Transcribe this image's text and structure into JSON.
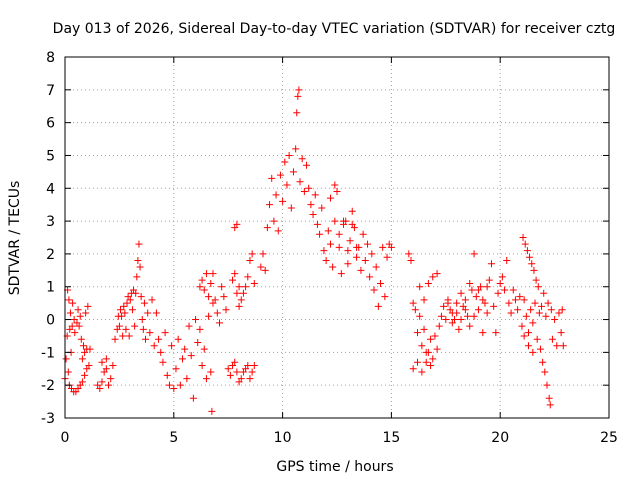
{
  "chart_data": {
    "type": "scatter",
    "title": "Day 013 of 2026, Sidereal Day-to-day VTEC variation (SDTVAR) for receiver cztg",
    "xlabel": "GPS time / hours",
    "ylabel": "SDTVAR / TECUs",
    "xlim": [
      0,
      25
    ],
    "ylim": [
      -3,
      8
    ],
    "xticks": [
      "0",
      "5",
      "10",
      "15",
      "20",
      "25"
    ],
    "yticks": [
      "-3",
      "-2",
      "-1",
      "0",
      "1",
      "2",
      "3",
      "4",
      "5",
      "6",
      "7",
      "8"
    ],
    "grid": true,
    "marker": "plus",
    "color": "#ff0000",
    "series": [
      {
        "name": "SDTVAR",
        "points": [
          [
            0.0,
            -1.8
          ],
          [
            0.05,
            -1.2
          ],
          [
            0.1,
            -0.5
          ],
          [
            0.12,
            0.9
          ],
          [
            0.15,
            -1.6
          ],
          [
            0.18,
            0.6
          ],
          [
            0.2,
            -2.0
          ],
          [
            0.22,
            -0.3
          ],
          [
            0.25,
            0.2
          ],
          [
            0.28,
            -1.0
          ],
          [
            0.3,
            -2.1
          ],
          [
            0.33,
            -0.2
          ],
          [
            0.35,
            0.5
          ],
          [
            0.4,
            -2.2
          ],
          [
            0.42,
            0.0
          ],
          [
            0.45,
            -0.4
          ],
          [
            0.5,
            -2.2
          ],
          [
            0.55,
            -0.1
          ],
          [
            0.6,
            -2.1
          ],
          [
            0.65,
            -0.2
          ],
          [
            0.7,
            -2.0
          ],
          [
            0.75,
            -0.6
          ],
          [
            0.8,
            -1.9
          ],
          [
            0.85,
            -0.8
          ],
          [
            0.9,
            -1.7
          ],
          [
            0.95,
            0.2
          ],
          [
            1.0,
            -1.5
          ],
          [
            1.05,
            0.4
          ],
          [
            1.1,
            -1.4
          ],
          [
            1.15,
            -0.9
          ],
          [
            0.6,
            0.3
          ],
          [
            0.7,
            0.1
          ],
          [
            0.8,
            -1.2
          ],
          [
            0.9,
            -1.0
          ],
          [
            1.0,
            -0.9
          ],
          [
            1.5,
            -2.0
          ],
          [
            1.6,
            -2.1
          ],
          [
            1.7,
            -1.9
          ],
          [
            1.8,
            -1.6
          ],
          [
            1.9,
            -1.5
          ],
          [
            2.0,
            -2.0
          ],
          [
            2.1,
            -1.8
          ],
          [
            2.2,
            -1.4
          ],
          [
            1.7,
            -1.3
          ],
          [
            1.9,
            -1.2
          ],
          [
            2.3,
            -0.6
          ],
          [
            2.4,
            -0.3
          ],
          [
            2.45,
            0.1
          ],
          [
            2.5,
            -0.2
          ],
          [
            2.55,
            0.3
          ],
          [
            2.6,
            0.1
          ],
          [
            2.65,
            -0.5
          ],
          [
            2.7,
            0.4
          ],
          [
            2.75,
            0.2
          ],
          [
            2.8,
            -0.3
          ],
          [
            2.85,
            0.5
          ],
          [
            2.9,
            0.7
          ],
          [
            2.95,
            -0.5
          ],
          [
            3.0,
            0.6
          ],
          [
            3.05,
            0.8
          ],
          [
            3.1,
            0.3
          ],
          [
            3.15,
            0.9
          ],
          [
            3.2,
            -0.2
          ],
          [
            3.25,
            0.8
          ],
          [
            3.3,
            1.3
          ],
          [
            3.35,
            1.8
          ],
          [
            3.4,
            2.3
          ],
          [
            3.45,
            1.6
          ],
          [
            3.5,
            0.7
          ],
          [
            3.55,
            0.0
          ],
          [
            3.6,
            -0.3
          ],
          [
            3.65,
            0.5
          ],
          [
            3.7,
            -0.6
          ],
          [
            3.8,
            0.2
          ],
          [
            3.9,
            -0.4
          ],
          [
            4.0,
            0.6
          ],
          [
            4.1,
            -0.8
          ],
          [
            4.2,
            0.2
          ],
          [
            4.3,
            -0.6
          ],
          [
            4.4,
            -1.0
          ],
          [
            4.5,
            -1.3
          ],
          [
            4.6,
            -0.4
          ],
          [
            4.7,
            -1.7
          ],
          [
            4.8,
            -2.0
          ],
          [
            4.9,
            -0.8
          ],
          [
            5.0,
            -2.1
          ],
          [
            5.1,
            -1.5
          ],
          [
            5.2,
            -0.6
          ],
          [
            5.3,
            -2.0
          ],
          [
            5.4,
            -1.2
          ],
          [
            5.5,
            -0.9
          ],
          [
            5.6,
            -1.8
          ],
          [
            5.7,
            -0.2
          ],
          [
            5.8,
            -1.1
          ],
          [
            5.9,
            -2.4
          ],
          [
            6.0,
            0.0
          ],
          [
            6.1,
            -0.7
          ],
          [
            6.2,
            -0.3
          ],
          [
            6.3,
            -1.4
          ],
          [
            6.4,
            -0.9
          ],
          [
            6.5,
            -1.8
          ],
          [
            6.6,
            0.1
          ],
          [
            6.7,
            -1.6
          ],
          [
            6.75,
            -2.8
          ],
          [
            6.8,
            0.5
          ],
          [
            6.2,
            1.0
          ],
          [
            6.3,
            1.2
          ],
          [
            6.4,
            0.9
          ],
          [
            6.5,
            1.4
          ],
          [
            6.6,
            0.7
          ],
          [
            6.7,
            1.1
          ],
          [
            6.8,
            1.4
          ],
          [
            6.9,
            0.6
          ],
          [
            7.0,
            0.2
          ],
          [
            7.1,
            -0.1
          ],
          [
            7.2,
            1.0
          ],
          [
            7.3,
            0.7
          ],
          [
            7.4,
            0.3
          ],
          [
            7.5,
            -1.5
          ],
          [
            7.6,
            -1.7
          ],
          [
            7.7,
            -1.4
          ],
          [
            7.8,
            -1.3
          ],
          [
            7.9,
            -1.6
          ],
          [
            8.0,
            -1.9
          ],
          [
            8.1,
            -1.8
          ],
          [
            8.2,
            -1.6
          ],
          [
            8.3,
            -1.5
          ],
          [
            8.4,
            -1.4
          ],
          [
            8.5,
            -1.8
          ],
          [
            8.6,
            -1.6
          ],
          [
            8.7,
            -1.4
          ],
          [
            7.7,
            1.2
          ],
          [
            7.8,
            1.4
          ],
          [
            7.9,
            0.8
          ],
          [
            8.0,
            1.0
          ],
          [
            8.1,
            0.6
          ],
          [
            8.2,
            0.8
          ],
          [
            8.3,
            1.0
          ],
          [
            8.4,
            1.3
          ],
          [
            8.5,
            1.8
          ],
          [
            8.6,
            2.0
          ],
          [
            8.7,
            1.1
          ],
          [
            7.8,
            2.8
          ],
          [
            7.9,
            2.9
          ],
          [
            8.0,
            0.4
          ],
          [
            9.0,
            1.6
          ],
          [
            9.1,
            2.0
          ],
          [
            9.2,
            1.5
          ],
          [
            9.3,
            2.8
          ],
          [
            9.4,
            3.5
          ],
          [
            9.5,
            4.3
          ],
          [
            9.6,
            3.0
          ],
          [
            9.7,
            3.8
          ],
          [
            9.8,
            2.7
          ],
          [
            9.9,
            4.4
          ],
          [
            10.0,
            3.6
          ],
          [
            10.1,
            4.8
          ],
          [
            10.2,
            4.1
          ],
          [
            10.3,
            5.0
          ],
          [
            10.4,
            3.4
          ],
          [
            10.5,
            4.5
          ],
          [
            10.6,
            5.2
          ],
          [
            10.65,
            6.3
          ],
          [
            10.7,
            6.8
          ],
          [
            10.75,
            7.0
          ],
          [
            10.8,
            4.2
          ],
          [
            10.9,
            4.9
          ],
          [
            11.0,
            3.9
          ],
          [
            11.1,
            4.7
          ],
          [
            11.2,
            4.0
          ],
          [
            11.3,
            3.5
          ],
          [
            11.4,
            3.2
          ],
          [
            11.5,
            3.8
          ],
          [
            11.6,
            2.9
          ],
          [
            11.7,
            2.6
          ],
          [
            11.8,
            3.4
          ],
          [
            11.9,
            2.1
          ],
          [
            12.0,
            1.8
          ],
          [
            12.1,
            2.7
          ],
          [
            12.2,
            2.3
          ],
          [
            12.3,
            1.6
          ],
          [
            12.4,
            4.1
          ],
          [
            12.5,
            3.9
          ],
          [
            12.6,
            2.6
          ],
          [
            12.7,
            1.4
          ],
          [
            12.8,
            2.9
          ],
          [
            12.9,
            3.0
          ],
          [
            13.0,
            1.7
          ],
          [
            13.1,
            2.4
          ],
          [
            13.2,
            3.3
          ],
          [
            13.3,
            2.8
          ],
          [
            13.4,
            1.9
          ],
          [
            13.5,
            2.2
          ],
          [
            13.6,
            1.5
          ],
          [
            13.7,
            2.6
          ],
          [
            13.8,
            1.8
          ],
          [
            13.9,
            2.3
          ],
          [
            14.0,
            1.3
          ],
          [
            14.1,
            2.0
          ],
          [
            14.2,
            0.9
          ],
          [
            14.3,
            1.6
          ],
          [
            14.4,
            0.4
          ],
          [
            14.5,
            1.1
          ],
          [
            14.6,
            2.2
          ],
          [
            14.7,
            0.7
          ],
          [
            14.8,
            1.9
          ],
          [
            14.9,
            2.3
          ],
          [
            15.0,
            2.2
          ],
          [
            12.2,
            3.7
          ],
          [
            12.4,
            3.0
          ],
          [
            12.6,
            2.2
          ],
          [
            12.8,
            3.0
          ],
          [
            13.0,
            2.1
          ],
          [
            13.2,
            2.9
          ],
          [
            13.4,
            2.2
          ],
          [
            15.8,
            2.0
          ],
          [
            15.9,
            1.8
          ],
          [
            16.0,
            0.5
          ],
          [
            16.1,
            0.3
          ],
          [
            16.2,
            -0.4
          ],
          [
            16.3,
            0.1
          ],
          [
            16.4,
            -0.8
          ],
          [
            16.5,
            -0.3
          ],
          [
            16.6,
            -1.3
          ],
          [
            16.7,
            -1.0
          ],
          [
            16.8,
            -0.6
          ],
          [
            16.9,
            -1.2
          ],
          [
            17.0,
            -0.5
          ],
          [
            17.1,
            -0.9
          ],
          [
            17.2,
            -0.2
          ],
          [
            17.3,
            0.1
          ],
          [
            17.4,
            0.4
          ],
          [
            17.5,
            0.0
          ],
          [
            17.6,
            0.6
          ],
          [
            17.7,
            0.3
          ],
          [
            16.0,
            -1.5
          ],
          [
            16.2,
            -1.3
          ],
          [
            16.4,
            -1.6
          ],
          [
            16.6,
            -1.0
          ],
          [
            16.8,
            -1.4
          ],
          [
            16.3,
            1.0
          ],
          [
            16.5,
            0.6
          ],
          [
            16.7,
            1.1
          ],
          [
            16.9,
            1.3
          ],
          [
            17.1,
            1.4
          ],
          [
            17.8,
            0.2
          ],
          [
            17.9,
            0.0
          ],
          [
            18.0,
            0.5
          ],
          [
            18.1,
            -0.3
          ],
          [
            18.2,
            0.8
          ],
          [
            18.3,
            0.4
          ],
          [
            18.4,
            0.6
          ],
          [
            18.5,
            0.1
          ],
          [
            18.6,
            1.1
          ],
          [
            18.7,
            0.9
          ],
          [
            18.8,
            2.0
          ],
          [
            18.9,
            0.7
          ],
          [
            19.0,
            0.3
          ],
          [
            19.1,
            1.0
          ],
          [
            19.2,
            -0.4
          ],
          [
            19.3,
            0.5
          ],
          [
            19.4,
            0.2
          ],
          [
            19.5,
            1.2
          ],
          [
            19.6,
            1.7
          ],
          [
            19.7,
            0.4
          ],
          [
            19.8,
            -0.4
          ],
          [
            19.9,
            0.8
          ],
          [
            20.0,
            1.1
          ],
          [
            20.1,
            1.3
          ],
          [
            20.2,
            0.9
          ],
          [
            20.3,
            1.8
          ],
          [
            20.4,
            0.5
          ],
          [
            20.5,
            0.2
          ],
          [
            20.6,
            0.9
          ],
          [
            20.7,
            0.6
          ],
          [
            20.8,
            0.3
          ],
          [
            20.9,
            0.7
          ],
          [
            21.0,
            -0.2
          ],
          [
            21.05,
            2.5
          ],
          [
            21.1,
            0.6
          ],
          [
            21.15,
            2.3
          ],
          [
            21.2,
            0.1
          ],
          [
            21.25,
            2.1
          ],
          [
            21.3,
            -0.4
          ],
          [
            21.35,
            1.9
          ],
          [
            21.4,
            0.3
          ],
          [
            21.45,
            1.7
          ],
          [
            21.5,
            -0.1
          ],
          [
            21.55,
            1.5
          ],
          [
            21.6,
            0.5
          ],
          [
            21.65,
            1.2
          ],
          [
            21.7,
            -0.6
          ],
          [
            21.75,
            1.0
          ],
          [
            21.8,
            0.2
          ],
          [
            21.85,
            -0.9
          ],
          [
            21.9,
            0.4
          ],
          [
            21.95,
            -1.3
          ],
          [
            22.0,
            0.8
          ],
          [
            22.05,
            -1.6
          ],
          [
            22.1,
            0.1
          ],
          [
            22.15,
            -2.0
          ],
          [
            22.2,
            0.5
          ],
          [
            22.25,
            -2.4
          ],
          [
            22.3,
            -2.6
          ],
          [
            22.35,
            0.3
          ],
          [
            22.4,
            -0.6
          ],
          [
            22.5,
            0.0
          ],
          [
            22.6,
            -0.8
          ],
          [
            22.7,
            0.2
          ],
          [
            22.8,
            -0.4
          ],
          [
            22.85,
            0.3
          ],
          [
            22.9,
            -0.8
          ],
          [
            21.1,
            -0.5
          ],
          [
            21.3,
            -0.8
          ],
          [
            21.5,
            -1.0
          ],
          [
            19.0,
            0.9
          ],
          [
            19.2,
            0.6
          ],
          [
            19.4,
            1.0
          ],
          [
            18.8,
            0.1
          ],
          [
            18.6,
            -0.2
          ],
          [
            18.4,
            0.3
          ],
          [
            18.2,
            0.0
          ],
          [
            18.0,
            0.2
          ],
          [
            17.8,
            -0.1
          ],
          [
            17.6,
            0.5
          ]
        ]
      }
    ]
  }
}
